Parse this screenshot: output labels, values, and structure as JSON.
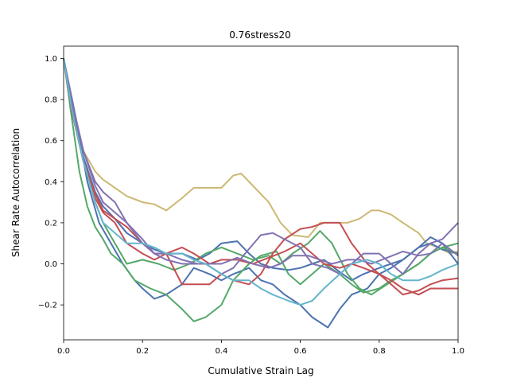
{
  "chart_data": {
    "type": "line",
    "title": "0.76stress20",
    "xlabel": "Cumulative Strain Lag",
    "ylabel": "Shear Rate Autocorrelation",
    "xlim": [
      0,
      1
    ],
    "ylim": [
      -0.37,
      1.06
    ],
    "xticks": [
      0,
      0.2,
      0.4,
      0.6,
      0.8,
      1
    ],
    "xtick_labels": [
      "0.0",
      "0.2",
      "0.4",
      "0.6",
      "0.8",
      "1.0"
    ],
    "yticks": [
      -0.2,
      0,
      0.2,
      0.4,
      0.6,
      0.8,
      1
    ],
    "ytick_labels": [
      "−0.2",
      "0.0",
      "0.2",
      "0.4",
      "0.6",
      "0.8",
      "1.0"
    ],
    "grid": false,
    "legend": "none",
    "series": [
      {
        "color": "#ccb974",
        "x": [
          0,
          0.02,
          0.05,
          0.08,
          0.1,
          0.13,
          0.16,
          0.2,
          0.23,
          0.26,
          0.3,
          0.33,
          0.37,
          0.4,
          0.43,
          0.45,
          0.48,
          0.52,
          0.55,
          0.58,
          0.62,
          0.65,
          0.68,
          0.72,
          0.75,
          0.78,
          0.8,
          0.83,
          0.86,
          0.9,
          0.92,
          0.95,
          0.98,
          1.0
        ],
        "y": [
          1.0,
          0.8,
          0.55,
          0.45,
          0.41,
          0.37,
          0.33,
          0.3,
          0.29,
          0.26,
          0.32,
          0.37,
          0.37,
          0.37,
          0.43,
          0.44,
          0.38,
          0.3,
          0.2,
          0.14,
          0.13,
          0.2,
          0.2,
          0.2,
          0.22,
          0.26,
          0.26,
          0.24,
          0.2,
          0.15,
          0.1,
          0.08,
          0.05,
          0.06
        ]
      },
      {
        "color": "#4c72b0",
        "x": [
          0,
          0.02,
          0.05,
          0.08,
          0.1,
          0.13,
          0.16,
          0.2,
          0.23,
          0.26,
          0.3,
          0.34,
          0.37,
          0.4,
          0.44,
          0.47,
          0.5,
          0.53,
          0.57,
          0.6,
          0.63,
          0.66,
          0.7,
          0.73,
          0.76,
          0.8,
          0.83,
          0.86,
          0.9,
          0.93,
          0.96,
          1.0
        ],
        "y": [
          1.0,
          0.78,
          0.52,
          0.35,
          0.28,
          0.22,
          0.15,
          0.1,
          0.07,
          0.05,
          0.05,
          0.02,
          0.05,
          0.1,
          0.11,
          0.05,
          0.0,
          -0.02,
          -0.03,
          -0.02,
          0.0,
          0.02,
          -0.04,
          -0.08,
          -0.05,
          -0.02,
          0.0,
          0.02,
          0.08,
          0.13,
          0.1,
          0.0
        ]
      },
      {
        "color": "#4c72b0",
        "x": [
          0,
          0.03,
          0.06,
          0.09,
          0.12,
          0.15,
          0.18,
          0.2,
          0.23,
          0.26,
          0.3,
          0.33,
          0.37,
          0.4,
          0.43,
          0.47,
          0.5,
          0.53,
          0.56,
          0.6,
          0.63,
          0.67,
          0.7,
          0.73,
          0.77,
          0.8,
          0.83,
          0.86,
          0.9,
          0.93,
          0.96,
          1.0
        ],
        "y": [
          1.0,
          0.72,
          0.4,
          0.2,
          0.1,
          0.0,
          -0.08,
          -0.12,
          -0.17,
          -0.15,
          -0.1,
          -0.02,
          -0.05,
          -0.08,
          -0.05,
          -0.02,
          -0.08,
          -0.1,
          -0.15,
          -0.2,
          -0.26,
          -0.31,
          -0.22,
          -0.15,
          -0.12,
          -0.05,
          -0.02,
          0.02,
          0.08,
          0.1,
          0.07,
          0.05
        ]
      },
      {
        "color": "#55a868",
        "x": [
          0,
          0.02,
          0.04,
          0.06,
          0.08,
          0.1,
          0.12,
          0.15,
          0.18,
          0.22,
          0.26,
          0.3,
          0.33,
          0.36,
          0.4,
          0.43,
          0.47,
          0.5,
          0.54,
          0.57,
          0.6,
          0.63,
          0.66,
          0.7,
          0.73,
          0.76,
          0.8,
          0.83,
          0.86,
          0.9,
          0.93,
          0.96,
          1.0
        ],
        "y": [
          1.0,
          0.72,
          0.45,
          0.28,
          0.18,
          0.12,
          0.05,
          0.0,
          -0.08,
          -0.12,
          -0.15,
          -0.22,
          -0.28,
          -0.26,
          -0.2,
          -0.08,
          0.0,
          0.04,
          0.06,
          -0.05,
          -0.1,
          -0.05,
          0.0,
          -0.05,
          -0.1,
          -0.14,
          -0.12,
          -0.08,
          -0.05,
          0.0,
          0.05,
          0.08,
          0.1
        ]
      },
      {
        "color": "#55a868",
        "x": [
          0,
          0.02,
          0.05,
          0.08,
          0.1,
          0.13,
          0.16,
          0.2,
          0.24,
          0.28,
          0.32,
          0.36,
          0.4,
          0.44,
          0.48,
          0.52,
          0.55,
          0.58,
          0.62,
          0.65,
          0.68,
          0.72,
          0.75,
          0.78,
          0.82,
          0.86,
          0.9,
          0.93,
          0.96,
          1.0
        ],
        "y": [
          1.0,
          0.75,
          0.5,
          0.3,
          0.2,
          0.1,
          0.0,
          0.02,
          0.0,
          -0.03,
          0.0,
          0.05,
          0.08,
          0.05,
          0.02,
          0.04,
          0.0,
          0.05,
          0.1,
          0.16,
          0.1,
          -0.05,
          -0.12,
          -0.15,
          -0.1,
          -0.05,
          0.0,
          0.05,
          0.08,
          0.05
        ]
      },
      {
        "color": "#c44e52",
        "x": [
          0,
          0.02,
          0.05,
          0.08,
          0.1,
          0.13,
          0.16,
          0.2,
          0.23,
          0.26,
          0.3,
          0.33,
          0.37,
          0.4,
          0.44,
          0.48,
          0.52,
          0.56,
          0.6,
          0.63,
          0.66,
          0.7,
          0.73,
          0.76,
          0.8,
          0.83,
          0.86,
          0.9,
          0.93,
          0.96,
          1.0
        ],
        "y": [
          1.0,
          0.75,
          0.5,
          0.32,
          0.25,
          0.2,
          0.1,
          0.05,
          0.02,
          0.05,
          0.08,
          0.05,
          0.0,
          0.02,
          0.02,
          0.0,
          0.03,
          0.06,
          0.1,
          0.05,
          0.0,
          -0.02,
          0.0,
          -0.02,
          -0.05,
          -0.1,
          -0.15,
          -0.13,
          -0.1,
          -0.08,
          -0.07
        ]
      },
      {
        "color": "#c44e52",
        "x": [
          0,
          0.02,
          0.05,
          0.08,
          0.1,
          0.13,
          0.16,
          0.2,
          0.23,
          0.26,
          0.3,
          0.33,
          0.37,
          0.4,
          0.43,
          0.47,
          0.5,
          0.53,
          0.56,
          0.6,
          0.63,
          0.66,
          0.7,
          0.73,
          0.77,
          0.8,
          0.83,
          0.86,
          0.9,
          0.93,
          0.96,
          1.0
        ],
        "y": [
          1.0,
          0.76,
          0.5,
          0.34,
          0.26,
          0.22,
          0.18,
          0.1,
          0.05,
          0.05,
          -0.1,
          -0.1,
          -0.1,
          -0.05,
          -0.08,
          -0.1,
          -0.05,
          0.05,
          0.12,
          0.17,
          0.18,
          0.2,
          0.2,
          0.1,
          0.0,
          -0.05,
          -0.08,
          -0.12,
          -0.15,
          -0.12,
          -0.12,
          -0.12
        ]
      },
      {
        "color": "#8172b2",
        "x": [
          0,
          0.02,
          0.05,
          0.08,
          0.1,
          0.13,
          0.16,
          0.2,
          0.23,
          0.26,
          0.3,
          0.34,
          0.37,
          0.4,
          0.44,
          0.48,
          0.52,
          0.55,
          0.58,
          0.62,
          0.65,
          0.68,
          0.72,
          0.75,
          0.78,
          0.82,
          0.86,
          0.9,
          0.93,
          0.96,
          1.0
        ],
        "y": [
          1.0,
          0.8,
          0.55,
          0.4,
          0.35,
          0.3,
          0.2,
          0.1,
          0.05,
          0.05,
          0.02,
          0.0,
          0.0,
          0.0,
          0.03,
          0.0,
          -0.02,
          0.0,
          0.04,
          0.04,
          0.02,
          0.0,
          0.02,
          0.02,
          0.0,
          0.03,
          0.06,
          0.04,
          0.05,
          0.1,
          0.04
        ]
      },
      {
        "color": "#8172b2",
        "x": [
          0,
          0.02,
          0.05,
          0.08,
          0.1,
          0.13,
          0.16,
          0.2,
          0.23,
          0.26,
          0.3,
          0.33,
          0.36,
          0.4,
          0.43,
          0.46,
          0.5,
          0.53,
          0.56,
          0.6,
          0.63,
          0.67,
          0.7,
          0.73,
          0.76,
          0.8,
          0.83,
          0.86,
          0.9,
          0.93,
          0.96,
          1.0
        ],
        "y": [
          1.0,
          0.8,
          0.55,
          0.38,
          0.3,
          0.25,
          0.2,
          0.12,
          0.05,
          0.02,
          0.0,
          0.0,
          0.0,
          -0.05,
          -0.02,
          0.05,
          0.14,
          0.15,
          0.12,
          0.08,
          0.0,
          -0.02,
          -0.05,
          0.0,
          0.05,
          0.05,
          0.0,
          -0.05,
          0.05,
          0.1,
          0.12,
          0.2
        ]
      },
      {
        "color": "#64b5cd",
        "x": [
          0,
          0.02,
          0.05,
          0.08,
          0.1,
          0.13,
          0.16,
          0.2,
          0.23,
          0.26,
          0.3,
          0.33,
          0.36,
          0.4,
          0.43,
          0.47,
          0.5,
          0.53,
          0.57,
          0.6,
          0.63,
          0.66,
          0.7,
          0.73,
          0.77,
          0.8,
          0.83,
          0.86,
          0.9,
          0.93,
          0.96,
          1.0
        ],
        "y": [
          1.0,
          0.76,
          0.5,
          0.3,
          0.2,
          0.15,
          0.1,
          0.1,
          0.08,
          0.05,
          0.05,
          0.02,
          0.0,
          -0.05,
          -0.08,
          -0.08,
          -0.12,
          -0.15,
          -0.18,
          -0.2,
          -0.18,
          -0.12,
          -0.05,
          0.0,
          0.02,
          0.0,
          -0.05,
          -0.08,
          -0.08,
          -0.06,
          -0.03,
          0.0
        ]
      }
    ]
  }
}
